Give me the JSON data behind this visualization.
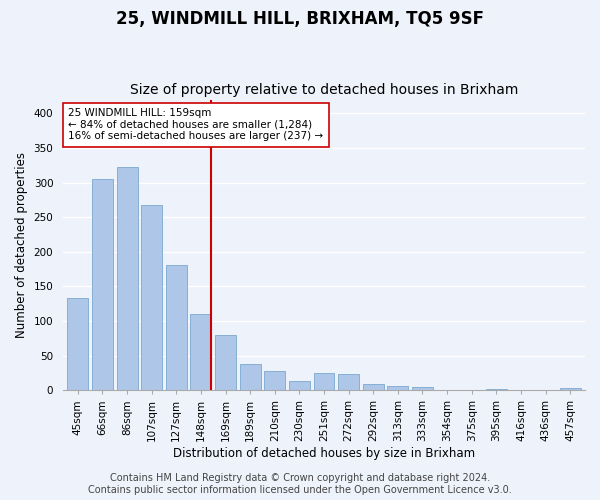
{
  "title": "25, WINDMILL HILL, BRIXHAM, TQ5 9SF",
  "subtitle": "Size of property relative to detached houses in Brixham",
  "xlabel": "Distribution of detached houses by size in Brixham",
  "ylabel": "Number of detached properties",
  "categories": [
    "45sqm",
    "66sqm",
    "86sqm",
    "107sqm",
    "127sqm",
    "148sqm",
    "169sqm",
    "189sqm",
    "210sqm",
    "230sqm",
    "251sqm",
    "272sqm",
    "292sqm",
    "313sqm",
    "333sqm",
    "354sqm",
    "375sqm",
    "395sqm",
    "416sqm",
    "436sqm",
    "457sqm"
  ],
  "values": [
    134,
    305,
    322,
    268,
    181,
    110,
    80,
    38,
    28,
    14,
    25,
    24,
    9,
    6,
    5,
    1,
    0,
    2,
    0,
    1,
    3
  ],
  "bar_color": "#aec6e8",
  "bar_edge_color": "#6a9ec9",
  "vline_x_index": 5,
  "vline_color": "#cc0000",
  "annotation_text": "25 WINDMILL HILL: 159sqm\n← 84% of detached houses are smaller (1,284)\n16% of semi-detached houses are larger (237) →",
  "annotation_box_color": "#ffffff",
  "annotation_box_edge_color": "#cc0000",
  "ylim": [
    0,
    420
  ],
  "yticks": [
    0,
    50,
    100,
    150,
    200,
    250,
    300,
    350,
    400
  ],
  "footer_line1": "Contains HM Land Registry data © Crown copyright and database right 2024.",
  "footer_line2": "Contains public sector information licensed under the Open Government Licence v3.0.",
  "background_color": "#eef2fa",
  "grid_color": "#ffffff",
  "title_fontsize": 12,
  "subtitle_fontsize": 10,
  "axis_label_fontsize": 8.5,
  "tick_fontsize": 7.5,
  "annotation_fontsize": 7.5,
  "footer_fontsize": 7
}
